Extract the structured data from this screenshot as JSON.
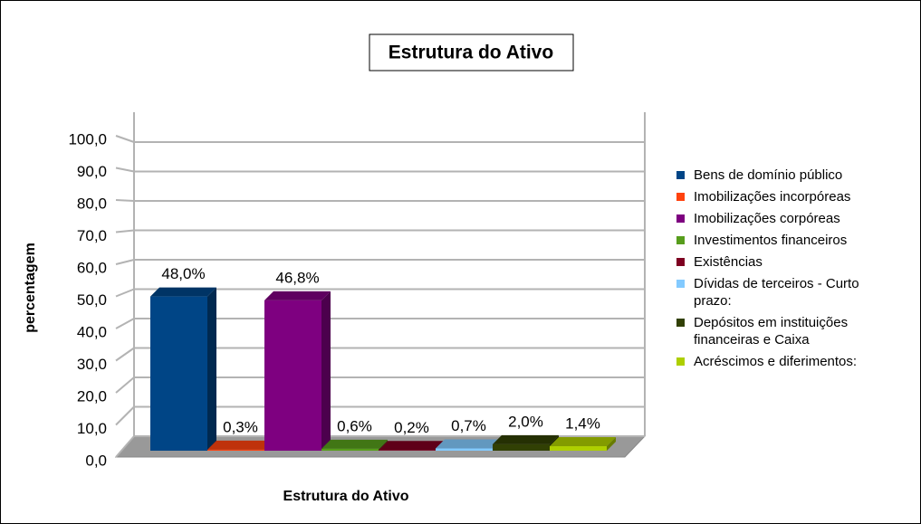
{
  "chart_data": {
    "type": "bar3d",
    "title": "Estrutura do Ativo",
    "x_label": "Estrutura do Ativo",
    "y_label": "percentagem",
    "series": [
      {
        "name": "Bens de domínio público",
        "color": "#004586",
        "values": [
          48.0
        ],
        "value_labels": [
          "48,0%"
        ]
      },
      {
        "name": "Imobilizações incorpóreas",
        "color": "#ff420e",
        "values": [
          0.3
        ],
        "value_labels": [
          "0,3%"
        ]
      },
      {
        "name": "Imobilizações corpóreas",
        "color": "#7e0080",
        "values": [
          46.8
        ],
        "value_labels": [
          "46,8%"
        ]
      },
      {
        "name": "Investimentos financeiros",
        "color": "#579d1c",
        "values": [
          0.6
        ],
        "value_labels": [
          "0,6%"
        ]
      },
      {
        "name": "Existências",
        "color": "#7e0021",
        "values": [
          0.2
        ],
        "value_labels": [
          "0,2%"
        ]
      },
      {
        "name": "Dívidas de terceiros - Curto prazo:",
        "color": "#83caff",
        "values": [
          0.7
        ],
        "value_labels": [
          "0,7%"
        ]
      },
      {
        "name": "Depósitos em instituições financeiras e Caixa",
        "color": "#314004",
        "values": [
          2.0
        ],
        "value_labels": [
          "2,0%"
        ]
      },
      {
        "name": "Acréscimos e diferimentos:",
        "color": "#aecf00",
        "values": [
          1.4
        ],
        "value_labels": [
          "1,4%"
        ]
      }
    ],
    "ylim": [
      0,
      100
    ],
    "yticks": [
      {
        "value": 0,
        "label": "0,0"
      },
      {
        "value": 10,
        "label": "10,0"
      },
      {
        "value": 20,
        "label": "20,0"
      },
      {
        "value": 30,
        "label": "30,0"
      },
      {
        "value": 40,
        "label": "40,0"
      },
      {
        "value": 50,
        "label": "50,0"
      },
      {
        "value": 60,
        "label": "60,0"
      },
      {
        "value": 70,
        "label": "70,0"
      },
      {
        "value": 80,
        "label": "80,0"
      },
      {
        "value": 90,
        "label": "90,0"
      },
      {
        "value": 100,
        "label": "100,0"
      }
    ],
    "grid": true,
    "legend": "right"
  }
}
